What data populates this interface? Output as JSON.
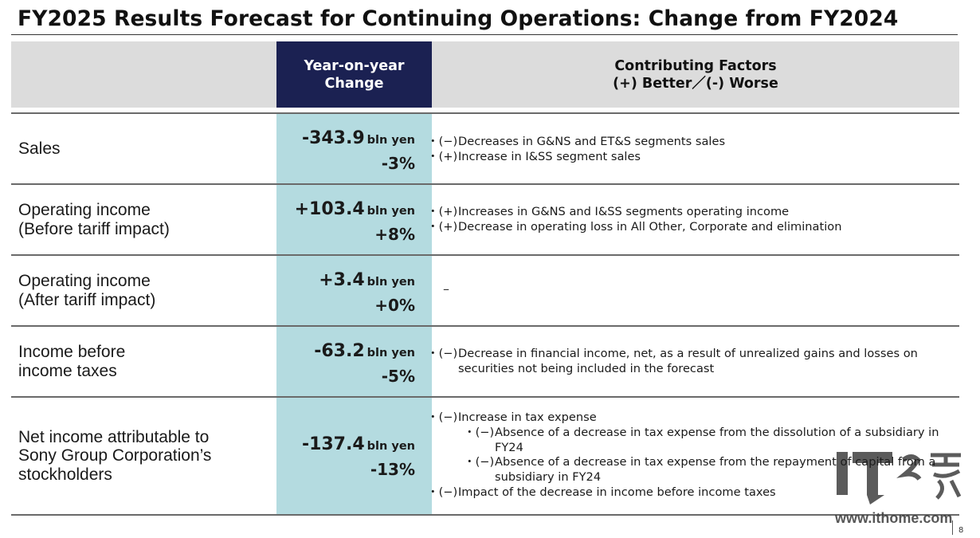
{
  "title": "FY2025 Results Forecast for Continuing Operations: Change from FY2024",
  "header": {
    "yoy_line1": "Year-on-year",
    "yoy_line2": "Change",
    "factors_line1": "Contributing Factors",
    "factors_line2": "(+) Better／(-) Worse"
  },
  "rows": [
    {
      "label_line1": "Sales",
      "label_line2": "",
      "value": "-343.9",
      "unit": "bln yen",
      "pct": "-3%",
      "factors": [
        {
          "bullet": "・(−)",
          "text": "Decreases in G&NS and ET&S segments sales"
        },
        {
          "bullet": "・(+)",
          "text": "Increase in I&SS segment sales"
        }
      ]
    },
    {
      "label_line1": "Operating income",
      "label_line2": "(Before tariff impact)",
      "value": "+103.4",
      "unit": "bln yen",
      "pct": "+8%",
      "factors": [
        {
          "bullet": "・(+)",
          "text": "Increases in G&NS and I&SS segments operating income"
        },
        {
          "bullet": "・(+)",
          "text": "Decrease in operating loss in All Other, Corporate and elimination"
        }
      ]
    },
    {
      "label_line1": "Operating income",
      "label_line2": "(After tariff impact)",
      "value": "+3.4",
      "unit": "bln yen",
      "pct": "+0%",
      "dash": "–"
    },
    {
      "label_line1": "Income before",
      "label_line2": "income taxes",
      "value": "-63.2",
      "unit": "bln yen",
      "pct": "-5%",
      "factors": [
        {
          "bullet": "・(−)",
          "text": "Decrease in financial income, net, as a result of unrealized gains and losses on securities not being included in the forecast"
        }
      ]
    },
    {
      "label_line1": "Net income attributable to",
      "label_line2": "Sony Group Corporation’s",
      "label_line3": "stockholders",
      "value": "-137.4",
      "unit": "bln yen",
      "pct": "-13%",
      "factors": [
        {
          "bullet": "・(−)",
          "text": "Increase in tax expense"
        },
        {
          "bullet": "・(−)",
          "text": "Absence of a decrease in tax expense from the dissolution of a subsidiary in FY24",
          "sub": true
        },
        {
          "bullet": "・(−)",
          "text": "Absence of a decrease in tax expense from the repayment of capital from a subsidiary in FY24",
          "sub": true
        },
        {
          "bullet": "・(−)",
          "text": "Impact of the decrease in income before income taxes"
        }
      ]
    }
  ],
  "watermark": "www.ithome.com",
  "page_number": "8"
}
